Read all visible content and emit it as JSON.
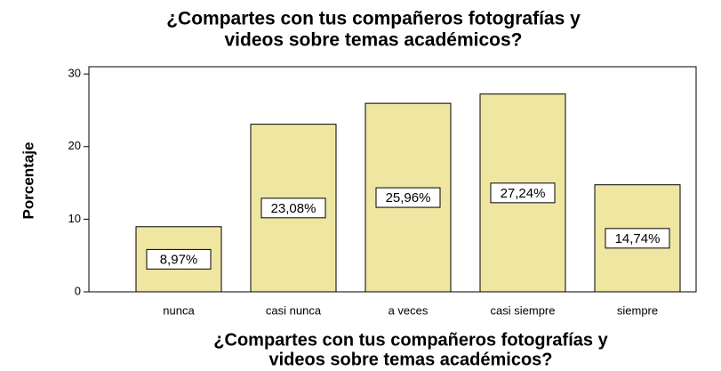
{
  "chart_data": {
    "type": "bar",
    "title": [
      "¿Compartes con tus compañeros fotografías y",
      "videos sobre temas académicos?"
    ],
    "x_label": [
      "¿Compartes con tus compañeros fotografías y",
      "videos sobre temas académicos?"
    ],
    "y_label": "Porcentaje",
    "categories": [
      "nunca",
      "casi nunca",
      "a veces",
      "casi siempre",
      "siempre"
    ],
    "values": [
      8.97,
      23.08,
      25.96,
      27.24,
      14.74
    ],
    "value_labels": [
      "8,97%",
      "23,08%",
      "25,96%",
      "27,24%",
      "14,74%"
    ],
    "color": "#efe6a2",
    "ylim": [
      0,
      31
    ],
    "yticks": [
      0,
      10,
      20,
      30
    ],
    "grid": false
  }
}
